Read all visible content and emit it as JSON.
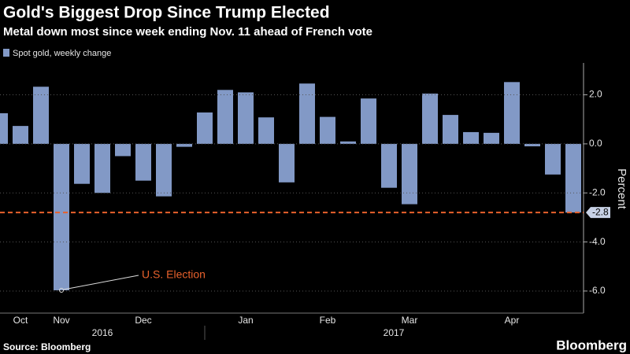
{
  "chart_data": {
    "type": "bar",
    "title": "Gold's Biggest Drop Since Trump Elected",
    "subtitle": "Metal down most since week ending Nov. 11 ahead of French vote",
    "series": [
      {
        "name": "Spot gold, weekly change",
        "color": "#8299c6",
        "values": [
          1.25,
          0.73,
          2.33,
          -5.97,
          -1.63,
          -2.0,
          -0.5,
          -1.5,
          -2.14,
          -0.12,
          1.28,
          2.2,
          2.1,
          1.08,
          -1.57,
          2.46,
          1.1,
          0.1,
          1.85,
          -1.79,
          -2.46,
          2.05,
          1.18,
          0.48,
          0.45,
          2.52,
          -0.1,
          -1.25,
          -2.8
        ]
      }
    ],
    "categories": [
      null,
      "Oct",
      null,
      "Nov",
      null,
      null,
      null,
      "Dec",
      null,
      null,
      null,
      null,
      "Jan",
      null,
      null,
      null,
      "Feb",
      null,
      null,
      null,
      "Mar",
      null,
      null,
      null,
      null,
      "Apr",
      null,
      null,
      null
    ],
    "year_labels": [
      "2016",
      "2017"
    ],
    "ylim": [
      -6.9,
      3.3
    ],
    "yticks": [
      {
        "value": 2,
        "label": "2.0"
      },
      {
        "value": 0,
        "label": "0.0"
      },
      {
        "value": -2,
        "label": "-2.0"
      },
      {
        "value": -4,
        "label": "-4.0"
      },
      {
        "value": -6,
        "label": "-6.0"
      }
    ],
    "ylabel": "Percent",
    "grid": true,
    "reference_line": {
      "value": -2.8,
      "color": "#e8612c"
    },
    "annotation": {
      "text": "U.S. Election",
      "color": "#e8612c"
    },
    "source": "Source: Bloomberg",
    "brand": "Bloomberg"
  }
}
